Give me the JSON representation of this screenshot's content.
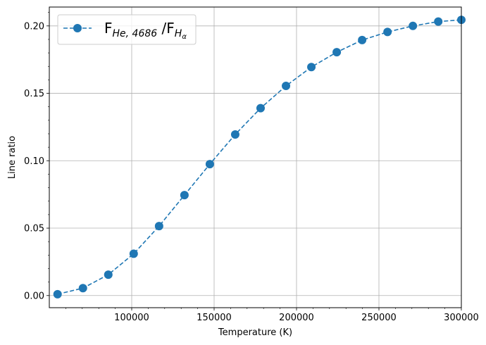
{
  "chart_data": {
    "type": "line",
    "xlabel": "Temperature (K)",
    "ylabel": "Line ratio",
    "xlim": [
      50000,
      300000
    ],
    "ylim": [
      -0.009,
      0.214
    ],
    "grid": true,
    "legend_position": "top-left",
    "x_ticks": [
      100000,
      150000,
      200000,
      250000,
      300000
    ],
    "x_tick_labels": [
      "100000",
      "150000",
      "200000",
      "250000",
      "300000"
    ],
    "y_ticks": [
      0.0,
      0.05,
      0.1,
      0.15,
      0.2
    ],
    "y_tick_labels": [
      "0.00",
      "0.05",
      "0.10",
      "0.15",
      "0.20"
    ],
    "series": [
      {
        "name": "F_{He,4686} / F_{H_α}",
        "color": "#1f77b4",
        "line_style": "dashed",
        "marker": "circle",
        "x": [
          55000,
          70400,
          85800,
          101200,
          116600,
          132000,
          147400,
          162800,
          178200,
          193600,
          209000,
          224400,
          239800,
          255200,
          270600,
          286000,
          300000
        ],
        "y": [
          0.001,
          0.0055,
          0.0155,
          0.031,
          0.0515,
          0.0745,
          0.0975,
          0.1195,
          0.139,
          0.1555,
          0.1695,
          0.1805,
          0.1895,
          0.1955,
          0.2,
          0.2032,
          0.2045
        ]
      }
    ]
  },
  "legend": {
    "f_main_1": "F",
    "sub_1": "He, 4686",
    "slash": " /F",
    "sub_2_main": "H",
    "sub_2_sub": "α"
  }
}
